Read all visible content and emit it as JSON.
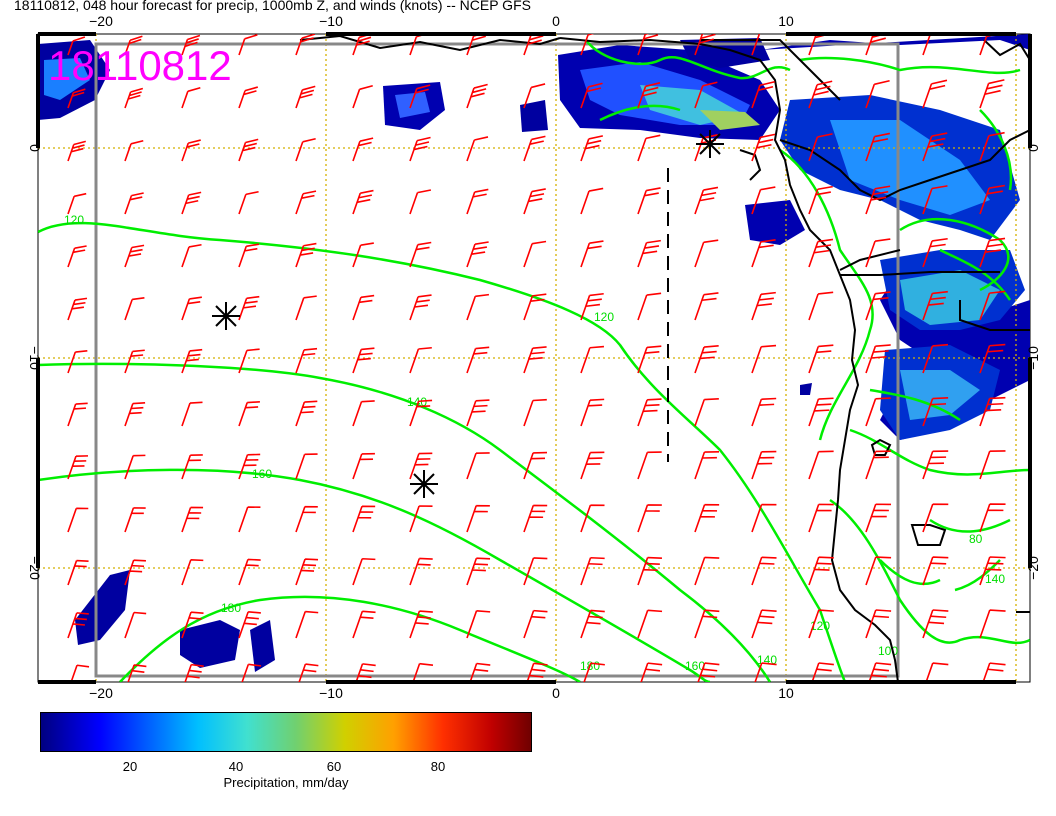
{
  "title": "18110812, 048 hour forecast for precip, 1000mb Z, and winds (knots) -- NCEP GFS",
  "date_stamp": "18110812",
  "lon_labels": [
    "−20",
    "−10",
    "0",
    "10"
  ],
  "lat_labels": [
    "0",
    "−10",
    "−20"
  ],
  "contour_labels": [
    "120",
    "120",
    "140",
    "160",
    "180",
    "180",
    "160",
    "140",
    "120",
    "80",
    "140",
    "100"
  ],
  "colorbar": {
    "ticks": [
      "20",
      "40",
      "60",
      "80"
    ],
    "label": "Precipitation, mm/day"
  },
  "colors": {
    "wind_barbs": "#ff0000",
    "contours": "#00ee00",
    "date_stamp": "#ff00ff",
    "grid": "#d4b000",
    "coast": "#000000"
  }
}
